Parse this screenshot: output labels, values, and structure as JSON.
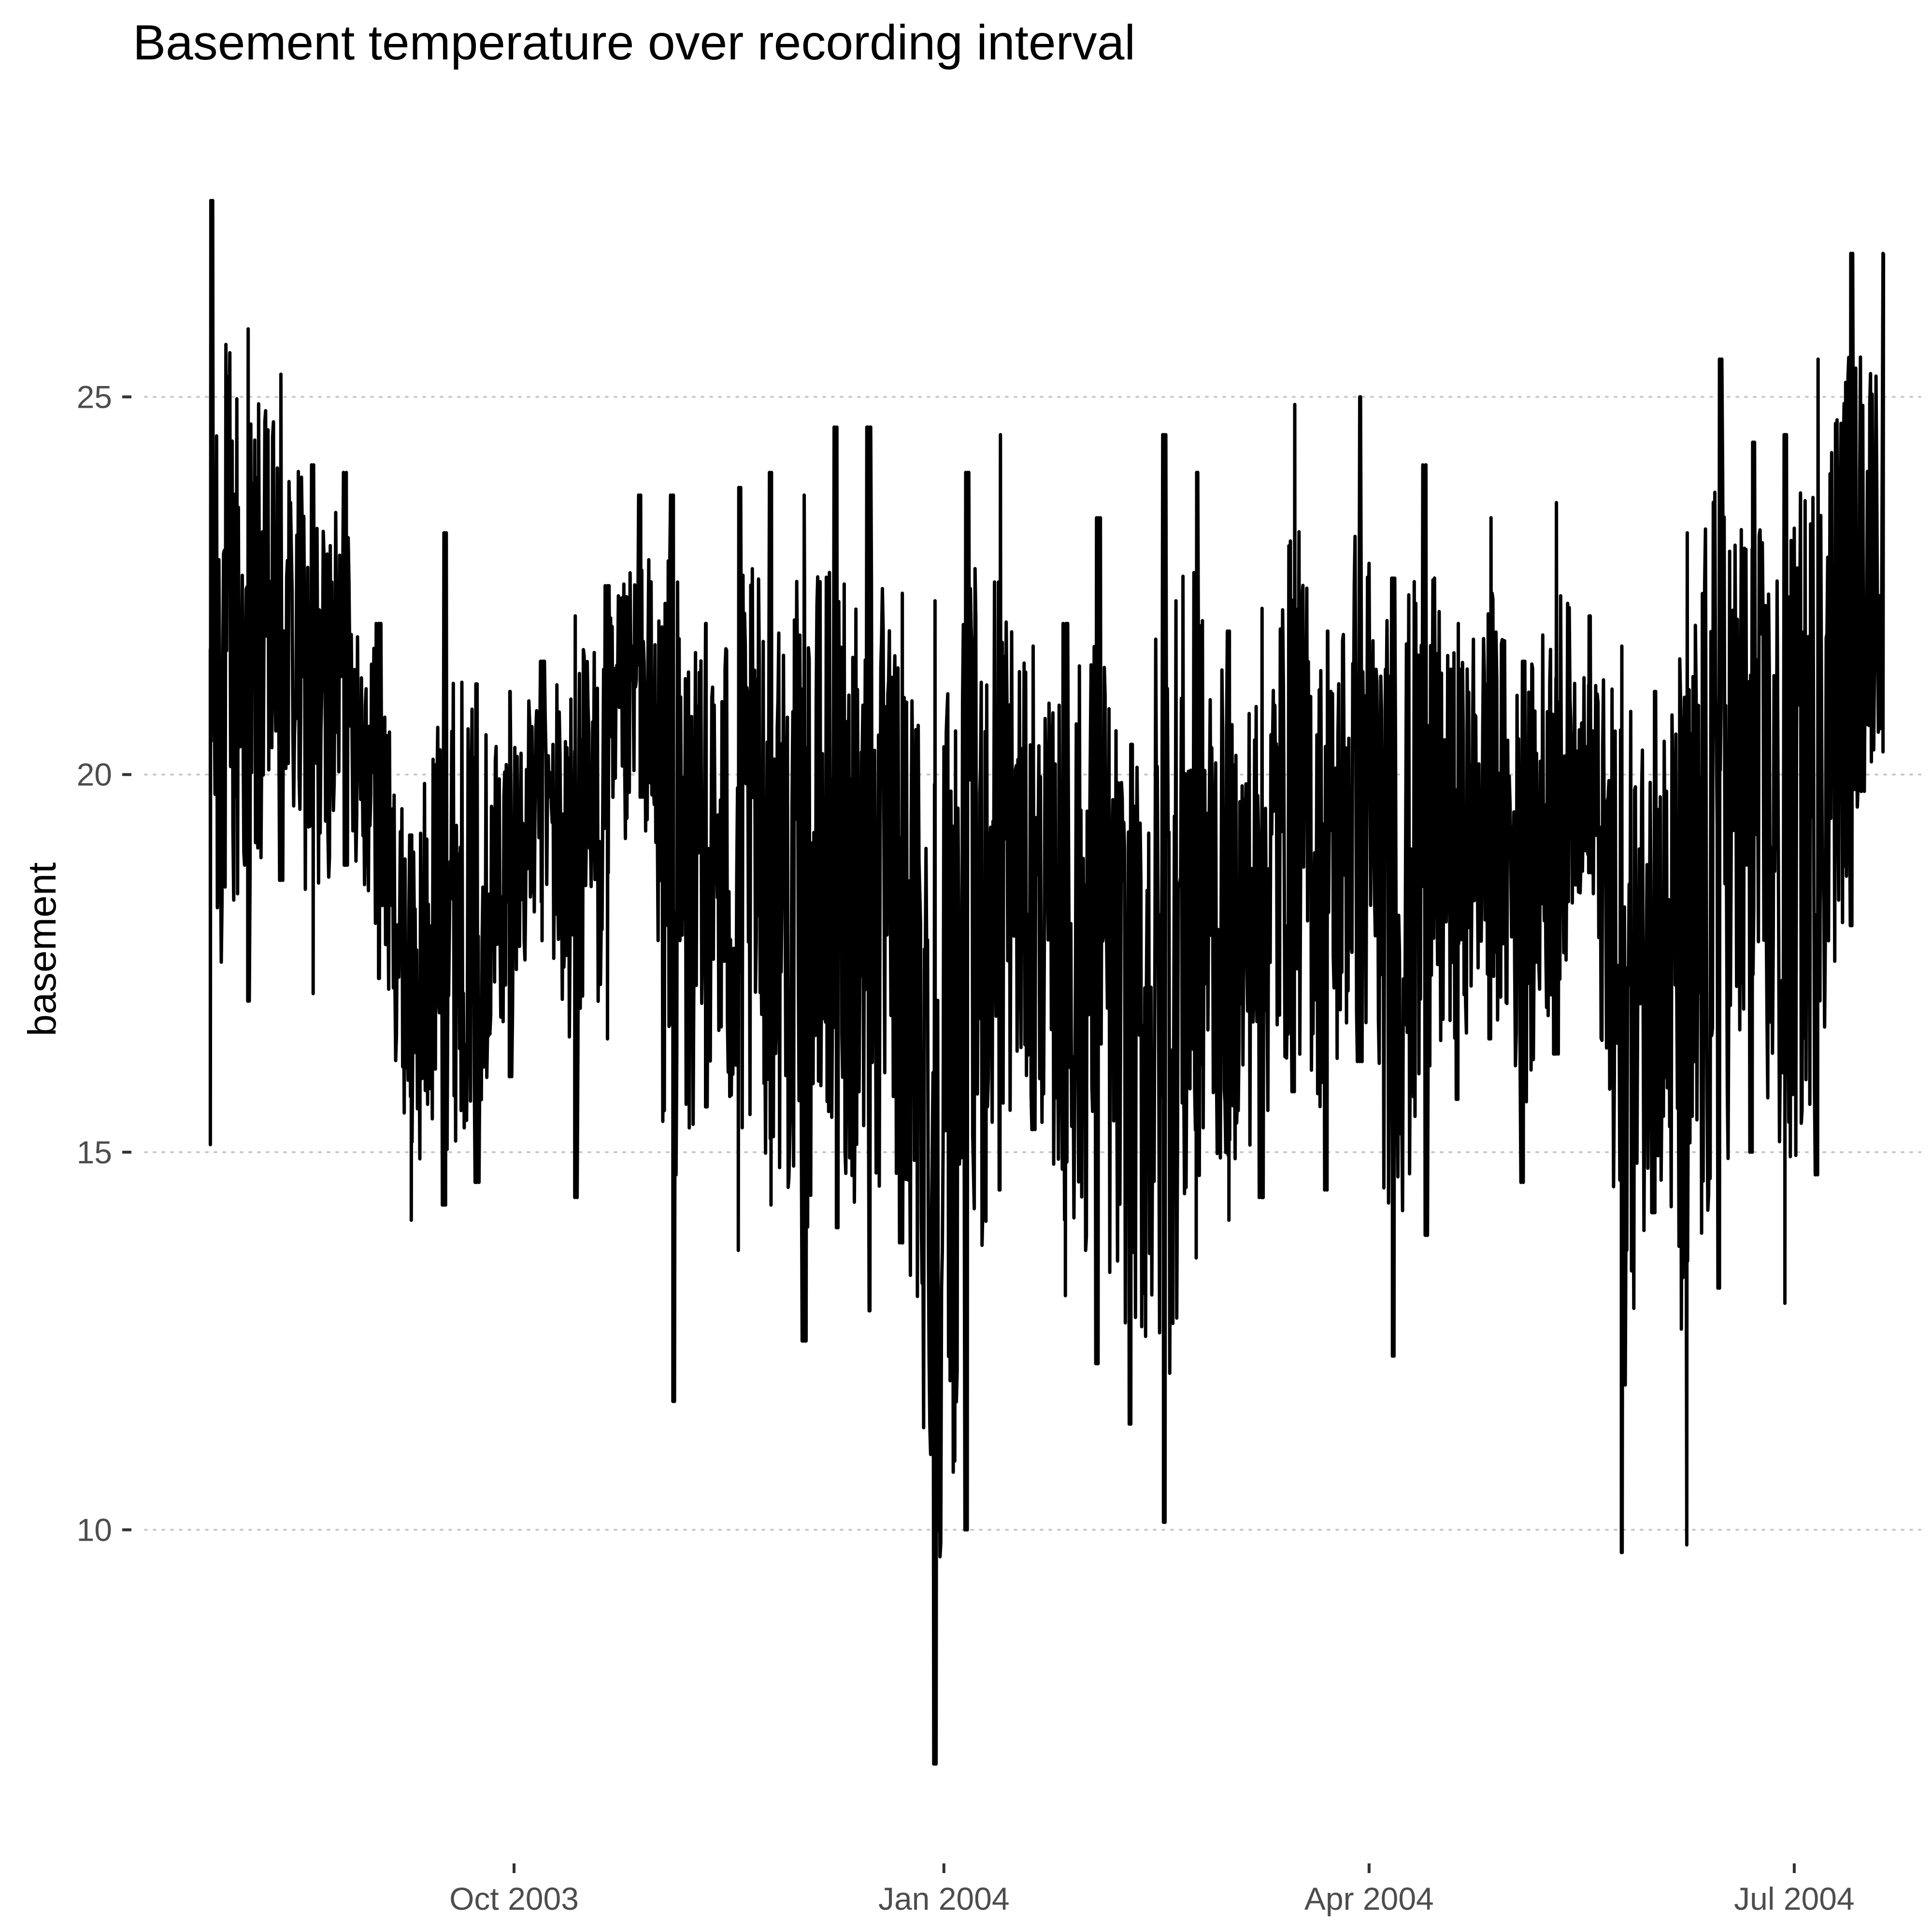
{
  "chart_data": {
    "type": "line",
    "title": "Basement temperature over recording interval",
    "xlabel": "",
    "ylabel": "basement",
    "grid": "horizontal dotted",
    "legend": "none",
    "line_color": "#000000",
    "xlim": [
      "2003-07-14",
      "2004-07-28"
    ],
    "ylim": [
      6.3,
      28.4
    ],
    "x_ticks": [
      {
        "date": "2003-10-01",
        "label": "Oct 2003"
      },
      {
        "date": "2004-01-01",
        "label": "Jan 2004"
      },
      {
        "date": "2004-04-01",
        "label": "Apr 2004"
      },
      {
        "date": "2004-07-01",
        "label": "Jul 2004"
      }
    ],
    "y_ticks": [
      {
        "value": 10,
        "label": "10"
      },
      {
        "value": 15,
        "label": "15"
      },
      {
        "value": 20,
        "label": "20"
      },
      {
        "value": 25,
        "label": "25"
      }
    ],
    "series": [
      {
        "date_range": [
          "2003-07-28",
          "2004-07-20"
        ],
        "x": [
          "2003-07-28",
          "2003-08-05",
          "2003-08-12",
          "2003-08-19",
          "2003-08-26",
          "2003-09-02",
          "2003-09-09",
          "2003-09-16",
          "2003-09-23",
          "2003-09-30",
          "2003-10-07",
          "2003-10-14",
          "2003-10-21",
          "2003-10-28",
          "2003-11-04",
          "2003-11-11",
          "2003-11-18",
          "2003-11-25",
          "2003-12-02",
          "2003-12-09",
          "2003-12-16",
          "2003-12-23",
          "2003-12-30",
          "2004-01-06",
          "2004-01-13",
          "2004-01-20",
          "2004-01-27",
          "2004-02-03",
          "2004-02-10",
          "2004-02-17",
          "2004-02-24",
          "2004-03-02",
          "2004-03-09",
          "2004-03-16",
          "2004-03-23",
          "2004-03-30",
          "2004-04-06",
          "2004-04-13",
          "2004-04-20",
          "2004-04-27",
          "2004-05-04",
          "2004-05-11",
          "2004-05-18",
          "2004-05-25",
          "2004-06-01",
          "2004-06-08",
          "2004-06-15",
          "2004-06-22",
          "2004-06-29",
          "2004-07-06",
          "2004-07-13",
          "2004-07-20"
        ],
        "min": [
          15.1,
          17.0,
          18.6,
          17.1,
          18.8,
          17.3,
          14.1,
          14.3,
          14.6,
          16.0,
          17.8,
          14.4,
          16.5,
          19.7,
          11.7,
          15.6,
          13.7,
          14.3,
          12.5,
          14.0,
          12.9,
          13.8,
          6.9,
          10.0,
          14.5,
          15.3,
          13.1,
          12.2,
          11.4,
          10.1,
          13.6,
          14.1,
          14.4,
          15.8,
          14.5,
          16.2,
          12.3,
          13.9,
          15.7,
          16.5,
          14.6,
          16.3,
          18.7,
          9.7,
          14.2,
          9.8,
          13.2,
          15.0,
          13.0,
          14.7,
          18.0,
          20.3
        ],
        "max": [
          27.6,
          25.9,
          25.3,
          24.1,
          24.0,
          22.0,
          19.2,
          23.2,
          21.2,
          21.1,
          21.5,
          22.1,
          22.5,
          23.7,
          23.7,
          22.0,
          23.8,
          24.0,
          23.7,
          24.6,
          24.6,
          22.4,
          22.3,
          24.0,
          24.5,
          21.7,
          22.0,
          23.4,
          20.4,
          24.5,
          24.0,
          21.9,
          22.2,
          24.9,
          21.9,
          25.0,
          22.6,
          24.1,
          22.0,
          23.4,
          21.5,
          23.6,
          22.1,
          21.7,
          21.1,
          23.2,
          25.5,
          24.4,
          24.5,
          25.5,
          26.9,
          26.9
        ],
        "mean": [
          22.9,
          22.4,
          22.0,
          21.9,
          21.0,
          19.9,
          17.2,
          17.6,
          18.9,
          19.3,
          19.8,
          20.1,
          20.4,
          20.2,
          19.9,
          18.5,
          18.3,
          17.9,
          17.9,
          17.8,
          17.7,
          17.8,
          17.9,
          17.8,
          18.0,
          17.6,
          17.8,
          17.4,
          17.2,
          17.0,
          17.3,
          17.7,
          18.1,
          18.4,
          18.7,
          18.9,
          19.0,
          19.0,
          19.2,
          19.3,
          19.1,
          19.4,
          19.6,
          18.4,
          18.2,
          17.6,
          19.8,
          19.4,
          18.2,
          20.2,
          21.3,
          22.6
        ]
      }
    ]
  }
}
